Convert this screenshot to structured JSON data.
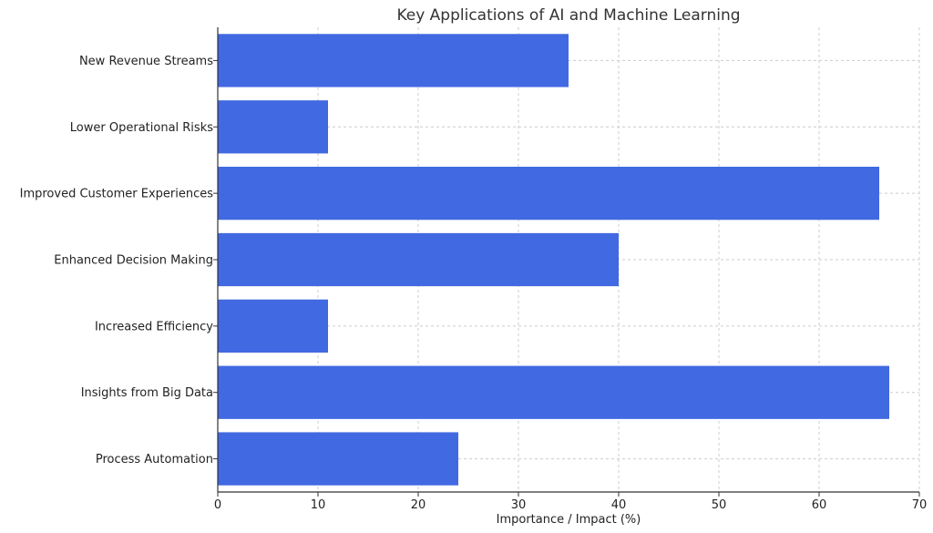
{
  "chart_data": {
    "type": "bar",
    "orientation": "horizontal",
    "title": "Key Applications of AI and Machine Learning",
    "xlabel": "Importance / Impact (%)",
    "ylabel": "",
    "xlim": [
      0,
      70
    ],
    "xticks": [
      0,
      10,
      20,
      30,
      40,
      50,
      60,
      70
    ],
    "grid": true,
    "bar_color": "#4169E1",
    "categories": [
      "Process Automation",
      "Insights from Big Data",
      "Increased Efficiency",
      "Enhanced Decision Making",
      "Improved Customer Experiences",
      "Lower Operational Risks",
      "New Revenue Streams"
    ],
    "values": [
      24,
      67,
      11,
      40,
      66,
      11,
      35
    ]
  }
}
